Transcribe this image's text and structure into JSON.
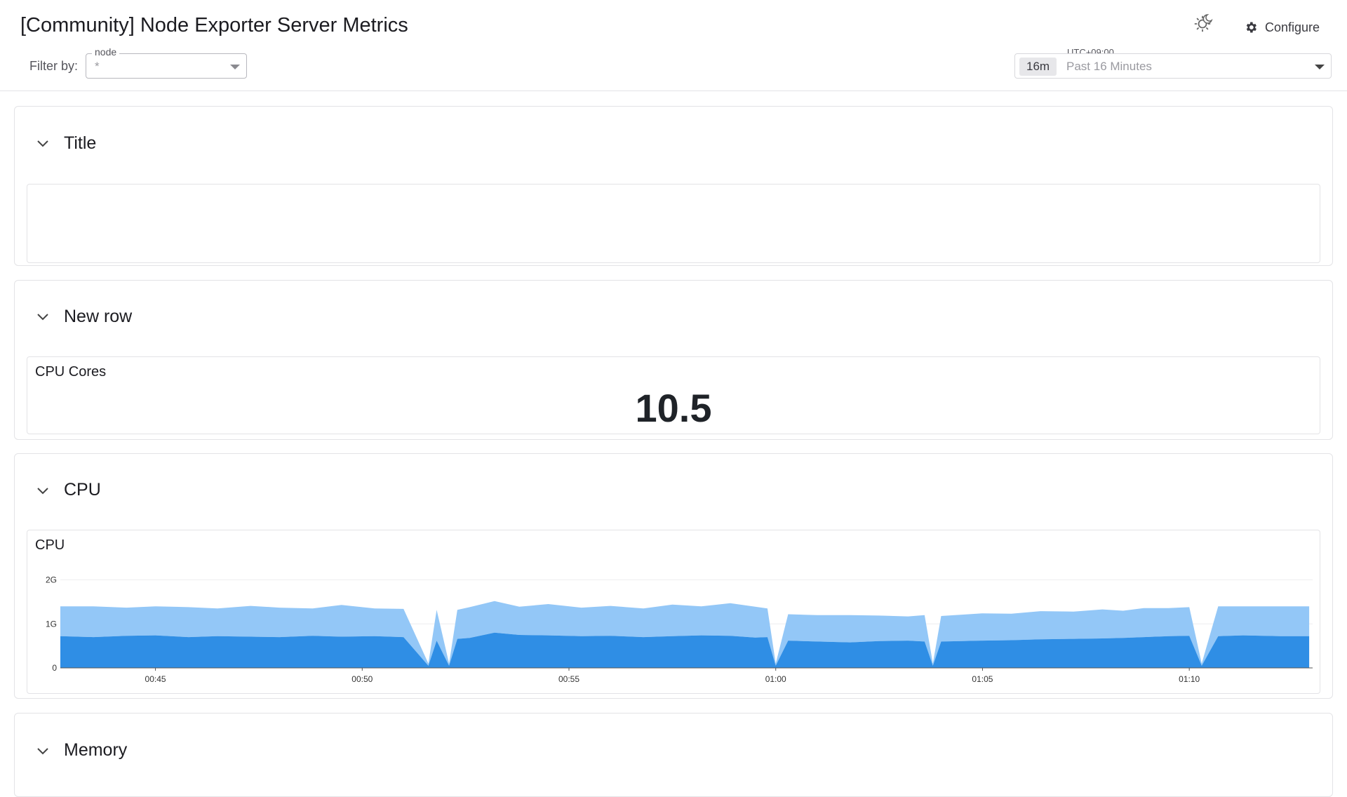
{
  "header": {
    "title": "[Community] Node Exporter Server Metrics",
    "filter_label": "Filter by:",
    "node_filter": {
      "legend": "node",
      "value": "*"
    },
    "configure_label": "Configure",
    "timezone": "UTC+09:00",
    "time_range": {
      "chip": "16m",
      "label": "Past 16 Minutes"
    }
  },
  "rows": [
    {
      "title": "Title"
    },
    {
      "title": "New row"
    },
    {
      "title": "CPU"
    },
    {
      "title": "Memory"
    }
  ],
  "panels": {
    "cpu_cores": {
      "title": "CPU Cores",
      "value": "10.5"
    },
    "cpu": {
      "title": "CPU"
    }
  },
  "colors": {
    "series_dark": "#2f8ee5",
    "series_light": "#93c7f7",
    "accent": "#1c1c21"
  },
  "chart_data": {
    "type": "area",
    "stacked": true,
    "x_ticks": [
      "00:45",
      "00:50",
      "00:55",
      "01:00",
      "01:05",
      "01:10"
    ],
    "x_tick_minutes": [
      45,
      50,
      55,
      60,
      65,
      70
    ],
    "x_range_minutes": [
      42.7,
      73.0
    ],
    "y_ticks": [
      "0",
      "1G",
      "2G"
    ],
    "ylim": [
      0,
      2.2
    ],
    "x_minutes": [
      42.7,
      43.5,
      44.3,
      45.0,
      45.8,
      46.5,
      47.3,
      48.0,
      48.8,
      49.5,
      50.3,
      51.0,
      51.6,
      51.8,
      52.1,
      52.3,
      52.6,
      53.2,
      53.8,
      54.5,
      55.3,
      56.0,
      56.8,
      57.5,
      58.2,
      58.9,
      59.5,
      59.8,
      60.0,
      60.3,
      61.0,
      61.8,
      62.5,
      63.2,
      63.6,
      63.8,
      64.0,
      64.5,
      65.0,
      65.7,
      66.4,
      67.2,
      67.9,
      68.4,
      68.9,
      69.5,
      70.0,
      70.3,
      70.7,
      71.3,
      72.2,
      72.9
    ],
    "series": [
      {
        "name": "",
        "values": [
          0.72,
          0.7,
          0.73,
          0.74,
          0.7,
          0.72,
          0.71,
          0.7,
          0.73,
          0.71,
          0.72,
          0.7,
          0.05,
          0.62,
          0.05,
          0.66,
          0.68,
          0.8,
          0.75,
          0.74,
          0.72,
          0.73,
          0.7,
          0.72,
          0.74,
          0.73,
          0.69,
          0.7,
          0.05,
          0.62,
          0.6,
          0.58,
          0.61,
          0.62,
          0.6,
          0.05,
          0.6,
          0.61,
          0.62,
          0.63,
          0.65,
          0.66,
          0.67,
          0.68,
          0.7,
          0.72,
          0.73,
          0.05,
          0.72,
          0.74,
          0.72,
          0.72
        ]
      },
      {
        "name": "",
        "values": [
          0.68,
          0.7,
          0.64,
          0.66,
          0.68,
          0.63,
          0.7,
          0.67,
          0.62,
          0.72,
          0.63,
          0.64,
          0.05,
          0.7,
          0.05,
          0.66,
          0.7,
          0.72,
          0.64,
          0.71,
          0.65,
          0.68,
          0.65,
          0.72,
          0.66,
          0.74,
          0.7,
          0.65,
          0.05,
          0.6,
          0.6,
          0.62,
          0.58,
          0.55,
          0.6,
          0.05,
          0.58,
          0.6,
          0.62,
          0.6,
          0.64,
          0.62,
          0.66,
          0.62,
          0.66,
          0.64,
          0.65,
          0.05,
          0.68,
          0.66,
          0.68,
          0.68
        ]
      }
    ]
  }
}
